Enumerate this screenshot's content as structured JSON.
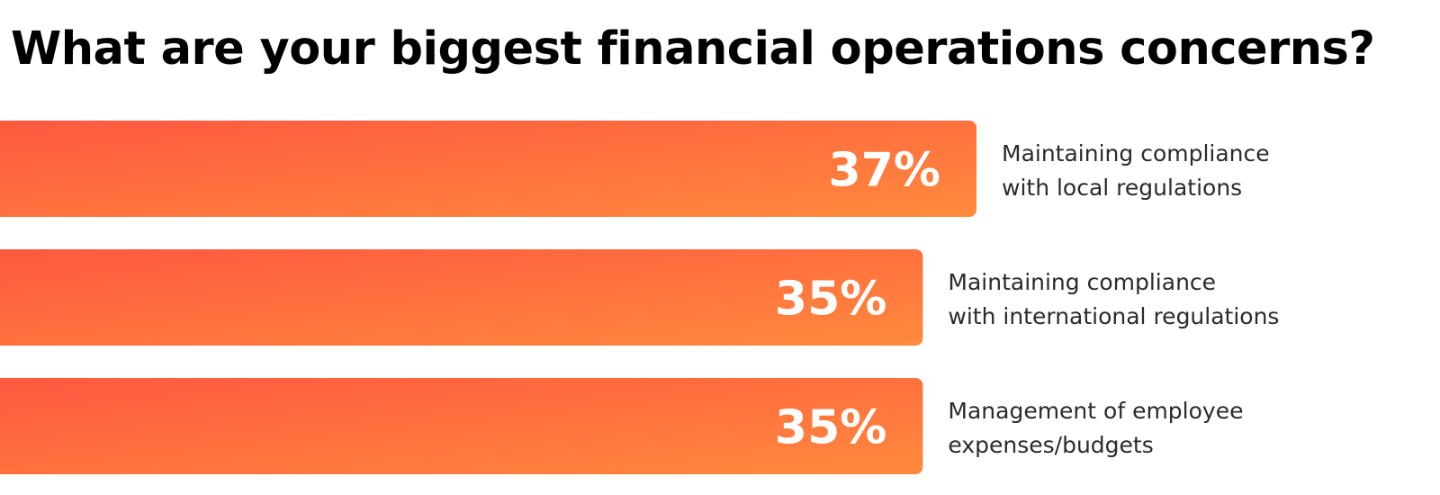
{
  "chart_data": {
    "type": "bar",
    "orientation": "horizontal",
    "title": "What are your biggest financial operations concerns?",
    "unit": "%",
    "categories": [
      [
        "Maintaining compliance",
        "with local regulations"
      ],
      [
        "Maintaining compliance",
        "with international regulations"
      ],
      [
        "Management of employee",
        "expenses/budgets"
      ]
    ],
    "values": [
      37,
      35,
      35
    ],
    "value_labels": [
      "37%",
      "35%",
      "35%"
    ],
    "colors": {
      "bar_gradient_start": "#ff5840",
      "bar_gradient_end": "#ff8a3d",
      "value_text": "#ffffff",
      "label_text": "#2b2b2b"
    },
    "xlabel": "",
    "ylabel": "",
    "grid": false,
    "legend": "none"
  }
}
